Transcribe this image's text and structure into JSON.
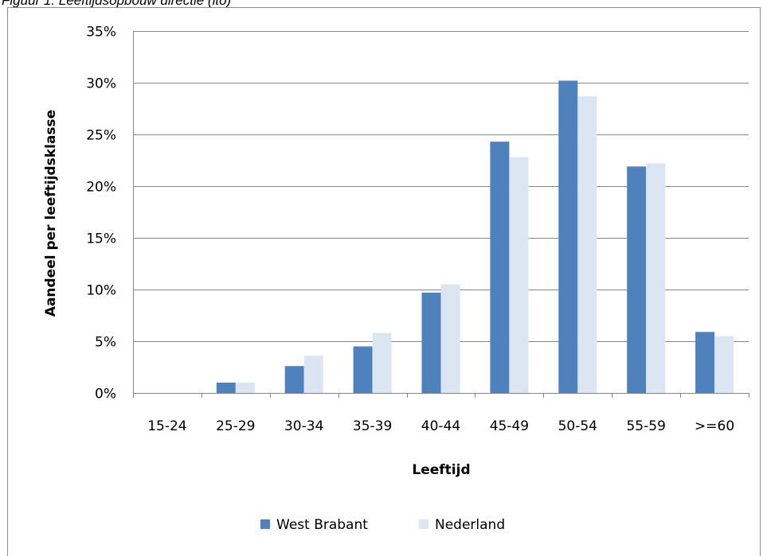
{
  "caption": "Figuur 1: Leeftijdsopbouw directie (lto)",
  "chart_data": {
    "type": "bar",
    "title": "",
    "xlabel": "Leeftijd",
    "ylabel": "Aandeel per leeftijdsklasse",
    "categories": [
      "15-24",
      "25-29",
      "30-34",
      "35-39",
      "40-44",
      "45-49",
      "50-54",
      "55-59",
      ">=60"
    ],
    "ylim": [
      0,
      35
    ],
    "yticks": [
      0,
      5,
      10,
      15,
      20,
      25,
      30,
      35
    ],
    "ytick_labels": [
      "0%",
      "5%",
      "10%",
      "15%",
      "20%",
      "25%",
      "30%",
      "35%"
    ],
    "grid": true,
    "legend_position": "bottom",
    "series": [
      {
        "name": "West Brabant",
        "color": "#4f81bd",
        "values": [
          0,
          1.0,
          2.6,
          4.5,
          9.7,
          24.3,
          30.2,
          21.9,
          5.9
        ]
      },
      {
        "name": "Nederland",
        "color": "#dce6f2",
        "values": [
          0,
          1.0,
          3.6,
          5.8,
          10.5,
          22.8,
          28.7,
          22.2,
          5.5
        ]
      }
    ]
  }
}
